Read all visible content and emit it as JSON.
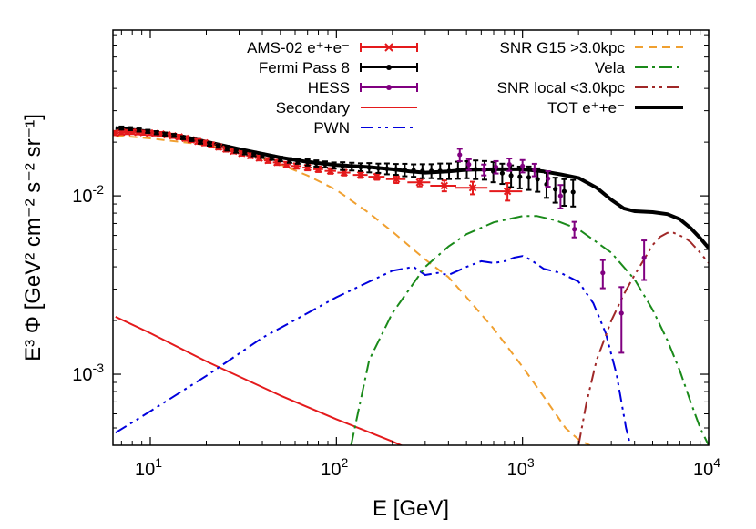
{
  "chart_data": {
    "type": "line",
    "xlabel": "E [GeV]",
    "ylabel": "E³ Φ [GeV² cm⁻² s⁻² sr⁻¹]",
    "log_x": true,
    "log_y": true,
    "xlim": [
      6.3,
      10000
    ],
    "ylim": [
      0.0004,
      0.085
    ],
    "grid": false,
    "x_ticks": [
      {
        "value": 10,
        "base": "10",
        "exp": "1"
      },
      {
        "value": 100,
        "base": "10",
        "exp": "2"
      },
      {
        "value": 1000,
        "base": "10",
        "exp": "3"
      },
      {
        "value": 10000,
        "base": "10",
        "exp": "4"
      }
    ],
    "y_ticks": [
      {
        "value": 0.001,
        "base": "10",
        "exp": "-3"
      },
      {
        "value": 0.01,
        "base": "10",
        "exp": "-2"
      }
    ],
    "legend_left": [
      {
        "label": "AMS-02 e⁺+e⁻",
        "color": "#e41a1c"
      },
      {
        "label": "Fermi Pass 8",
        "color": "#000000"
      },
      {
        "label": "HESS",
        "color": "#800080"
      },
      {
        "label": "Secondary",
        "color": "#e41a1c"
      },
      {
        "label": "PWN",
        "color": "#0000dd"
      }
    ],
    "legend_right": [
      {
        "label": "SNR G15 >3.0kpc",
        "color": "#f0a030"
      },
      {
        "label": "Vela",
        "color": "#1a8a1a"
      },
      {
        "label": "SNR local <3.0kpc",
        "color": "#a02828"
      },
      {
        "label": "TOT e⁺+e⁻",
        "color": "#000000"
      }
    ],
    "series": [
      {
        "name": "Secondary",
        "color": "#e41a1c",
        "dash": "",
        "x": [
          6.5,
          10,
          20,
          50,
          100,
          200,
          280
        ],
        "y": [
          0.0021,
          0.0017,
          0.00118,
          0.00076,
          0.00056,
          0.00042,
          0.00036
        ]
      },
      {
        "name": "PWN",
        "color": "#0000dd",
        "dash": "14,5,3,5,3,5",
        "x": [
          6.5,
          10,
          20,
          40,
          70,
          100,
          150,
          200,
          260,
          300,
          350,
          400,
          500,
          600,
          700,
          800,
          900,
          1000,
          1100,
          1300,
          1600,
          2000,
          2400,
          2800,
          3200,
          3600,
          3800
        ],
        "y": [
          0.00047,
          0.00062,
          0.00098,
          0.0016,
          0.0022,
          0.0027,
          0.0033,
          0.0038,
          0.004,
          0.0036,
          0.0037,
          0.0036,
          0.004,
          0.0043,
          0.0042,
          0.0043,
          0.0045,
          0.0046,
          0.0044,
          0.0039,
          0.0037,
          0.0033,
          0.0025,
          0.0017,
          0.001,
          0.0005,
          0.0004
        ]
      },
      {
        "name": "SNR G15 >3.0kpc",
        "color": "#f0a030",
        "dash": "9,6",
        "x": [
          6.5,
          10,
          20,
          30,
          50,
          70,
          100,
          150,
          200,
          300,
          400,
          500,
          700,
          1000,
          1300,
          1700,
          2000,
          2300
        ],
        "y": [
          0.0218,
          0.021,
          0.0193,
          0.0178,
          0.015,
          0.013,
          0.0108,
          0.008,
          0.0063,
          0.0044,
          0.0035,
          0.0027,
          0.0018,
          0.0011,
          0.00075,
          0.0005,
          0.00043,
          0.0004
        ]
      },
      {
        "name": "Vela",
        "color": "#1a8a1a",
        "dash": "14,5,3,5",
        "x": [
          120,
          150,
          200,
          300,
          400,
          500,
          700,
          1000,
          1200,
          1500,
          2000,
          3000,
          4000,
          5000,
          6000,
          7000,
          8000,
          9000,
          10000
        ],
        "y": [
          0.0004,
          0.0012,
          0.0022,
          0.004,
          0.0052,
          0.0061,
          0.0071,
          0.0077,
          0.0077,
          0.0073,
          0.0065,
          0.0048,
          0.0034,
          0.0023,
          0.00155,
          0.00105,
          0.0007,
          0.0005,
          0.0004
        ]
      },
      {
        "name": "SNR local <3.0kpc",
        "color": "#a02828",
        "dash": "14,5,3,5,3,5",
        "x": [
          2000,
          2200,
          2500,
          3000,
          3500,
          4000,
          4500,
          5000,
          5500,
          6000,
          6500,
          7000,
          7500,
          8000,
          9000,
          10000
        ],
        "y": [
          0.0004,
          0.00068,
          0.0012,
          0.002,
          0.0028,
          0.0036,
          0.0044,
          0.0053,
          0.0059,
          0.0062,
          0.0062,
          0.006,
          0.0058,
          0.0055,
          0.0048,
          0.0042
        ]
      },
      {
        "name": "TOT e⁺+e⁻",
        "color": "#000000",
        "dash": "",
        "width": 4,
        "x": [
          6.5,
          10,
          15,
          20,
          30,
          50,
          70,
          100,
          150,
          200,
          250,
          300,
          400,
          500,
          700,
          1000,
          1300,
          1600,
          2000,
          2500,
          3000,
          3500,
          4000,
          5000,
          6000,
          7000,
          8000,
          9000,
          10000
        ],
        "y": [
          0.024,
          0.0229,
          0.0215,
          0.0201,
          0.0183,
          0.0164,
          0.0155,
          0.0149,
          0.0145,
          0.0141,
          0.0137,
          0.0135,
          0.0137,
          0.014,
          0.0141,
          0.0141,
          0.0137,
          0.0132,
          0.0126,
          0.0111,
          0.0095,
          0.0085,
          0.0082,
          0.0081,
          0.0079,
          0.0074,
          0.0066,
          0.0058,
          0.0051
        ]
      }
    ],
    "data_points": [
      {
        "name": "AMS-02 e⁺+e⁻",
        "color": "#e41a1c",
        "marker": "x",
        "x": [
          6.5,
          7,
          7.5,
          8,
          8.6,
          9.2,
          9.9,
          10.6,
          11.4,
          12.3,
          13.2,
          14.3,
          15.4,
          16.6,
          18,
          19.6,
          21.3,
          23.3,
          25.5,
          28,
          31,
          34.5,
          38.5,
          43,
          48,
          54,
          61,
          70,
          80,
          93,
          110,
          135,
          165,
          210,
          280,
          380,
          540,
          830
        ],
        "y": [
          0.0225,
          0.0227,
          0.0228,
          0.0228,
          0.0227,
          0.0226,
          0.0225,
          0.0224,
          0.0222,
          0.022,
          0.0217,
          0.0214,
          0.021,
          0.0206,
          0.0202,
          0.0198,
          0.0193,
          0.0188,
          0.0183,
          0.0178,
          0.0173,
          0.0168,
          0.0163,
          0.0158,
          0.0154,
          0.015,
          0.0147,
          0.0144,
          0.0141,
          0.0138,
          0.0135,
          0.0131,
          0.0128,
          0.0124,
          0.0119,
          0.0114,
          0.0111,
          0.0106
        ],
        "yerr": [
          0.0006,
          0.0006,
          0.0006,
          0.0006,
          0.0006,
          0.0006,
          0.0006,
          0.0006,
          0.0006,
          0.0006,
          0.0006,
          0.0006,
          0.0006,
          0.0006,
          0.0006,
          0.0006,
          0.0006,
          0.0006,
          0.0006,
          0.0005,
          0.0005,
          0.0005,
          0.0005,
          0.0005,
          0.0005,
          0.0005,
          0.0005,
          0.0005,
          0.0005,
          0.0005,
          0.0005,
          0.0005,
          0.0005,
          0.0006,
          0.0006,
          0.0008,
          0.0009,
          0.0012
        ],
        "xerr_frac": [
          0.04,
          0.04,
          0.04,
          0.04,
          0.04,
          0.04,
          0.04,
          0.04,
          0.04,
          0.04,
          0.04,
          0.04,
          0.04,
          0.04,
          0.04,
          0.04,
          0.04,
          0.04,
          0.04,
          0.05,
          0.05,
          0.05,
          0.05,
          0.05,
          0.05,
          0.06,
          0.06,
          0.06,
          0.06,
          0.07,
          0.08,
          0.09,
          0.1,
          0.12,
          0.14,
          0.16,
          0.2,
          0.2
        ]
      },
      {
        "name": "Fermi Pass 8",
        "color": "#000000",
        "marker": "dot",
        "x": [
          7,
          7.8,
          8.7,
          9.7,
          10.8,
          12,
          13.4,
          15,
          16.7,
          18.6,
          20.8,
          23.2,
          25.9,
          28.9,
          32.2,
          36,
          40,
          45,
          50,
          56,
          62,
          70,
          78,
          87,
          97,
          108,
          121,
          135,
          150,
          168,
          187,
          209,
          233,
          260,
          290,
          324,
          361,
          403,
          450,
          502,
          560,
          625,
          697,
          778,
          868,
          968,
          1080,
          1205,
          1345,
          1500,
          1675,
          1870
        ],
        "y": [
          0.024,
          0.0238,
          0.0234,
          0.023,
          0.0226,
          0.0222,
          0.0218,
          0.0212,
          0.0207,
          0.02,
          0.0195,
          0.019,
          0.0185,
          0.018,
          0.0176,
          0.0172,
          0.0168,
          0.0164,
          0.0161,
          0.0158,
          0.0156,
          0.0154,
          0.0152,
          0.015,
          0.0148,
          0.0147,
          0.0146,
          0.0145,
          0.0144,
          0.0143,
          0.0142,
          0.0141,
          0.014,
          0.0139,
          0.0138,
          0.0138,
          0.0138,
          0.0138,
          0.014,
          0.0141,
          0.0141,
          0.014,
          0.0137,
          0.0134,
          0.013,
          0.0128,
          0.0127,
          0.0124,
          0.0116,
          0.0109,
          0.0106,
          0.0105
        ],
        "yerr_frac": [
          0.02,
          0.02,
          0.02,
          0.02,
          0.02,
          0.02,
          0.02,
          0.02,
          0.02,
          0.02,
          0.02,
          0.02,
          0.03,
          0.03,
          0.03,
          0.03,
          0.03,
          0.03,
          0.03,
          0.03,
          0.03,
          0.04,
          0.04,
          0.04,
          0.04,
          0.05,
          0.05,
          0.05,
          0.06,
          0.06,
          0.07,
          0.07,
          0.08,
          0.08,
          0.09,
          0.09,
          0.1,
          0.1,
          0.11,
          0.11,
          0.12,
          0.12,
          0.13,
          0.13,
          0.14,
          0.14,
          0.15,
          0.15,
          0.16,
          0.16,
          0.17,
          0.17
        ]
      },
      {
        "name": "HESS",
        "color": "#800080",
        "marker": "dot",
        "x": [
          460,
          515,
          620,
          720,
          850,
          1000,
          1160,
          1370,
          1600,
          1900,
          2700,
          3400,
          4500
        ],
        "y": [
          0.017,
          0.015,
          0.014,
          0.0145,
          0.015,
          0.0147,
          0.014,
          0.0125,
          0.01,
          0.0065,
          0.0037,
          0.0022,
          0.0045
        ],
        "yerr_frac": [
          0.08,
          0.07,
          0.07,
          0.08,
          0.08,
          0.08,
          0.08,
          0.1,
          0.15,
          0.1,
          0.18,
          0.4,
          0.25
        ]
      }
    ]
  }
}
